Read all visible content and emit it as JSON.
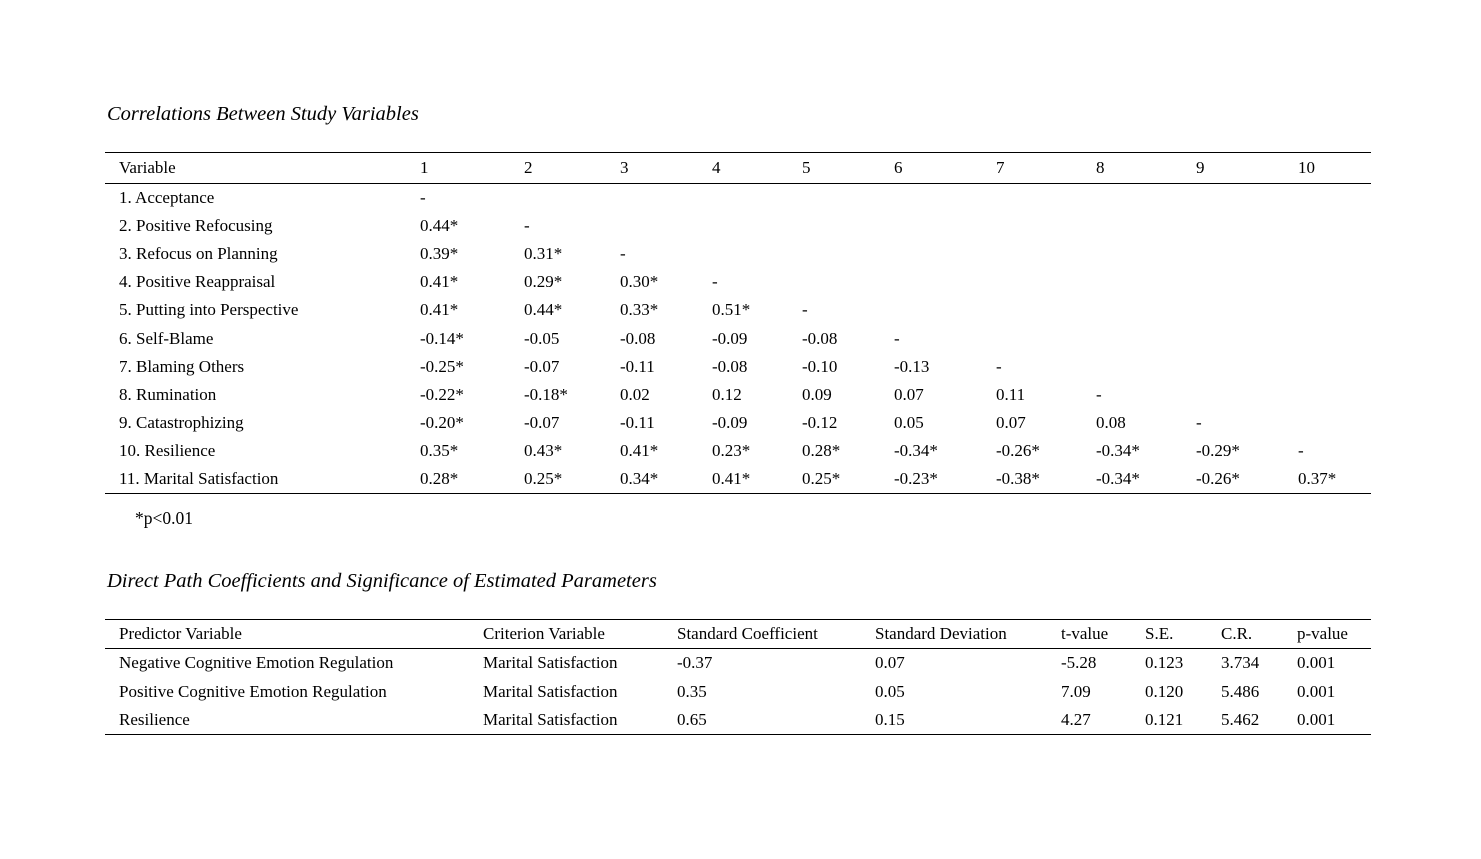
{
  "page": {
    "background_color": "#ffffff",
    "text_color": "#000000"
  },
  "correlation_section": {
    "title": "Correlations Between Study Variables",
    "footnote": "*p<0.01",
    "table": {
      "header": [
        "Variable",
        "1",
        "2",
        "3",
        "4",
        "5",
        "6",
        "7",
        "8",
        "9",
        "10"
      ],
      "rows": [
        [
          "1. Acceptance",
          "-",
          "",
          "",
          "",
          "",
          "",
          "",
          "",
          "",
          ""
        ],
        [
          "2. Positive Refocusing",
          "0.44*",
          "-",
          "",
          "",
          "",
          "",
          "",
          "",
          "",
          ""
        ],
        [
          "3. Refocus on Planning",
          "0.39*",
          "0.31*",
          "-",
          "",
          "",
          "",
          "",
          "",
          "",
          ""
        ],
        [
          "4. Positive Reappraisal",
          "0.41*",
          "0.29*",
          "0.30*",
          "-",
          "",
          "",
          "",
          "",
          "",
          ""
        ],
        [
          "5. Putting into Perspective",
          "0.41*",
          "0.44*",
          "0.33*",
          "0.51*",
          "-",
          "",
          "",
          "",
          "",
          ""
        ],
        [
          "6. Self-Blame",
          "-0.14*",
          "-0.05",
          "-0.08",
          "-0.09",
          "-0.08",
          "-",
          "",
          "",
          "",
          ""
        ],
        [
          "7. Blaming Others",
          "-0.25*",
          "-0.07",
          "-0.11",
          "-0.08",
          "-0.10",
          "-0.13",
          "-",
          "",
          "",
          ""
        ],
        [
          "8. Rumination",
          "-0.22*",
          "-0.18*",
          "0.02",
          "0.12",
          "0.09",
          "0.07",
          "0.11",
          "-",
          "",
          ""
        ],
        [
          "9. Catastrophizing",
          "-0.20*",
          "-0.07",
          "-0.11",
          "-0.09",
          "-0.12",
          "0.05",
          "0.07",
          "0.08",
          "-",
          ""
        ],
        [
          "10. Resilience",
          "0.35*",
          "0.43*",
          "0.41*",
          "0.23*",
          "0.28*",
          "-0.34*",
          "-0.26*",
          "-0.34*",
          "-0.29*",
          "-"
        ],
        [
          "11. Marital Satisfaction",
          "0.28*",
          "0.25*",
          "0.34*",
          "0.41*",
          "0.25*",
          "-0.23*",
          "-0.38*",
          "-0.34*",
          "-0.26*",
          "0.37*"
        ]
      ]
    }
  },
  "path_section": {
    "title": "Direct Path Coefficients and Significance of Estimated Parameters",
    "table": {
      "header": [
        "Predictor Variable",
        "Criterion Variable",
        "Standard Coefficient",
        "Standard Deviation",
        "t-value",
        "S.E.",
        "C.R.",
        "p-value"
      ],
      "rows": [
        [
          "Negative Cognitive Emotion Regulation",
          "Marital Satisfaction",
          "-0.37",
          "0.07",
          "-5.28",
          "0.123",
          "3.734",
          "0.001"
        ],
        [
          "Positive Cognitive Emotion Regulation",
          "Marital Satisfaction",
          "0.35",
          "0.05",
          "7.09",
          "0.120",
          "5.486",
          "0.001"
        ],
        [
          "Resilience",
          "Marital Satisfaction",
          "0.65",
          "0.15",
          "4.27",
          "0.121",
          "5.462",
          "0.001"
        ]
      ]
    }
  }
}
